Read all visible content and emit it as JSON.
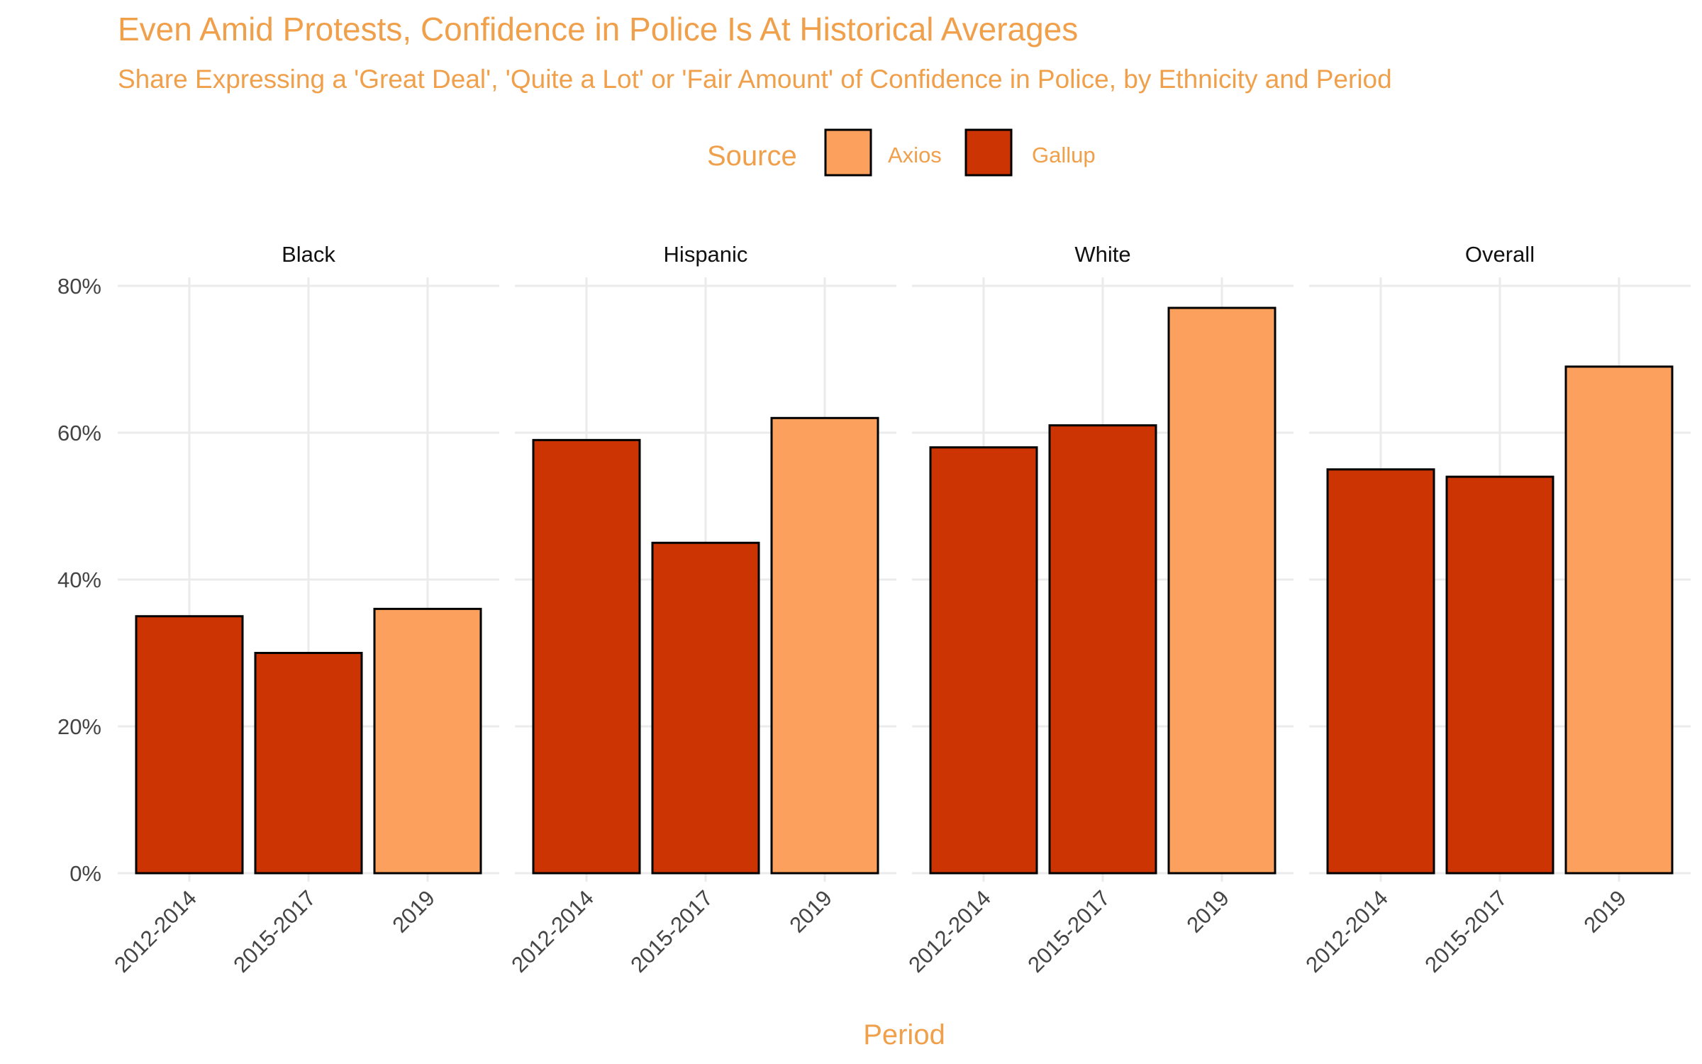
{
  "chart_data": {
    "type": "bar",
    "title": "Even Amid Protests, Confidence in Police Is At Historical Averages",
    "subtitle": "Share Expressing a 'Great Deal', 'Quite a Lot' or 'Fair Amount' of Confidence in Police, by Ethnicity and Period",
    "xlabel": "Period",
    "ylabel": "",
    "ylim": [
      0,
      0.8
    ],
    "y_ticks": [
      0,
      0.2,
      0.4,
      0.6,
      0.8
    ],
    "y_tick_labels": [
      "0%",
      "20%",
      "40%",
      "60%",
      "80%"
    ],
    "grid": true,
    "legend": {
      "title": "Source",
      "position": "top",
      "entries": [
        {
          "name": "Axios",
          "color": "#fca05d"
        },
        {
          "name": "Gallup",
          "color": "#cc3404"
        }
      ]
    },
    "categories": [
      "2012-2014",
      "2015-2017",
      "2019"
    ],
    "sources": [
      "Gallup",
      "Gallup",
      "Axios"
    ],
    "facets": [
      {
        "name": "Black",
        "values": [
          0.35,
          0.3,
          0.36
        ]
      },
      {
        "name": "Hispanic",
        "values": [
          0.59,
          0.45,
          0.62
        ]
      },
      {
        "name": "White",
        "values": [
          0.58,
          0.61,
          0.77
        ]
      },
      {
        "name": "Overall",
        "values": [
          0.55,
          0.54,
          0.69
        ]
      }
    ]
  },
  "colors": {
    "accent_text": "#f0a04b",
    "gallup": "#cc3404",
    "axios": "#fca05d",
    "bar_outline": "#000000",
    "grid": "#ebebeb"
  }
}
